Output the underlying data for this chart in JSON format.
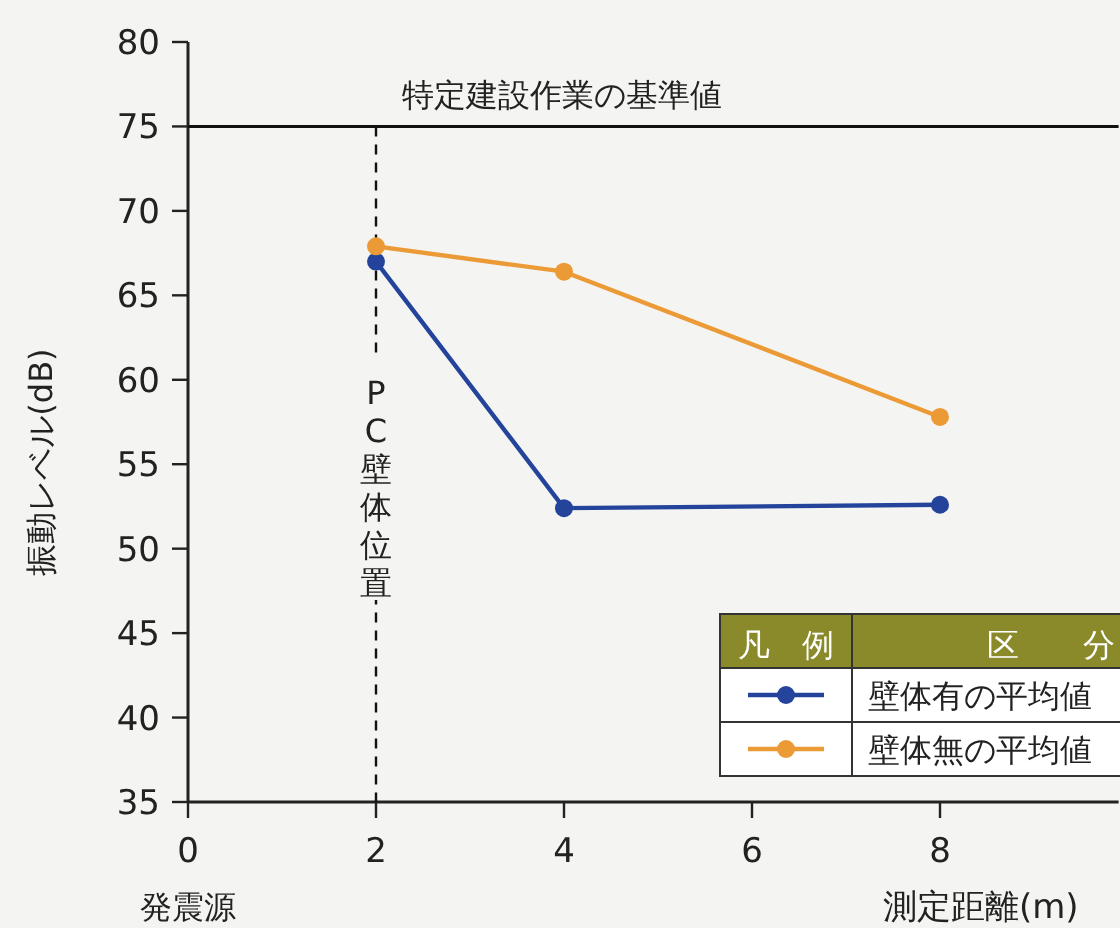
{
  "chart_data": {
    "type": "line",
    "xlabel": "測定距離(m)",
    "ylabel": "振動レベル(dB)",
    "legend_title": "凡　例",
    "annotations": [
      "区　　分",
      "発震源"
    ],
    "series": [
      {
        "name": "壁体有の平均値",
        "color": "#23449a",
        "x": [
          2,
          4,
          8
        ],
        "values": [
          67,
          52.4,
          52.6
        ]
      },
      {
        "name": "壁体無の平均値",
        "color": "#eb9a36",
        "x": [
          2,
          4,
          8
        ],
        "values": [
          67.9,
          66.4,
          57.8
        ]
      }
    ],
    "xlim": [
      0,
      9.9
    ],
    "xticks": [
      0,
      2,
      4,
      6,
      8
    ],
    "ylim": [
      35,
      80
    ],
    "yticks": [
      35,
      40,
      45,
      50,
      55,
      60,
      65,
      70,
      75,
      80
    ],
    "ref_lines": [
      {
        "axis": "y",
        "value": 75,
        "label": "特定建設作業の基準値",
        "line_style": "solid",
        "color": "#111111"
      },
      {
        "axis": "x",
        "value": 2,
        "label": "PC壁体位置",
        "line_style": "dashed",
        "color": "#111111"
      }
    ],
    "legend": "bottom right",
    "marker": "circle",
    "line_style": "solid",
    "grid": false
  }
}
